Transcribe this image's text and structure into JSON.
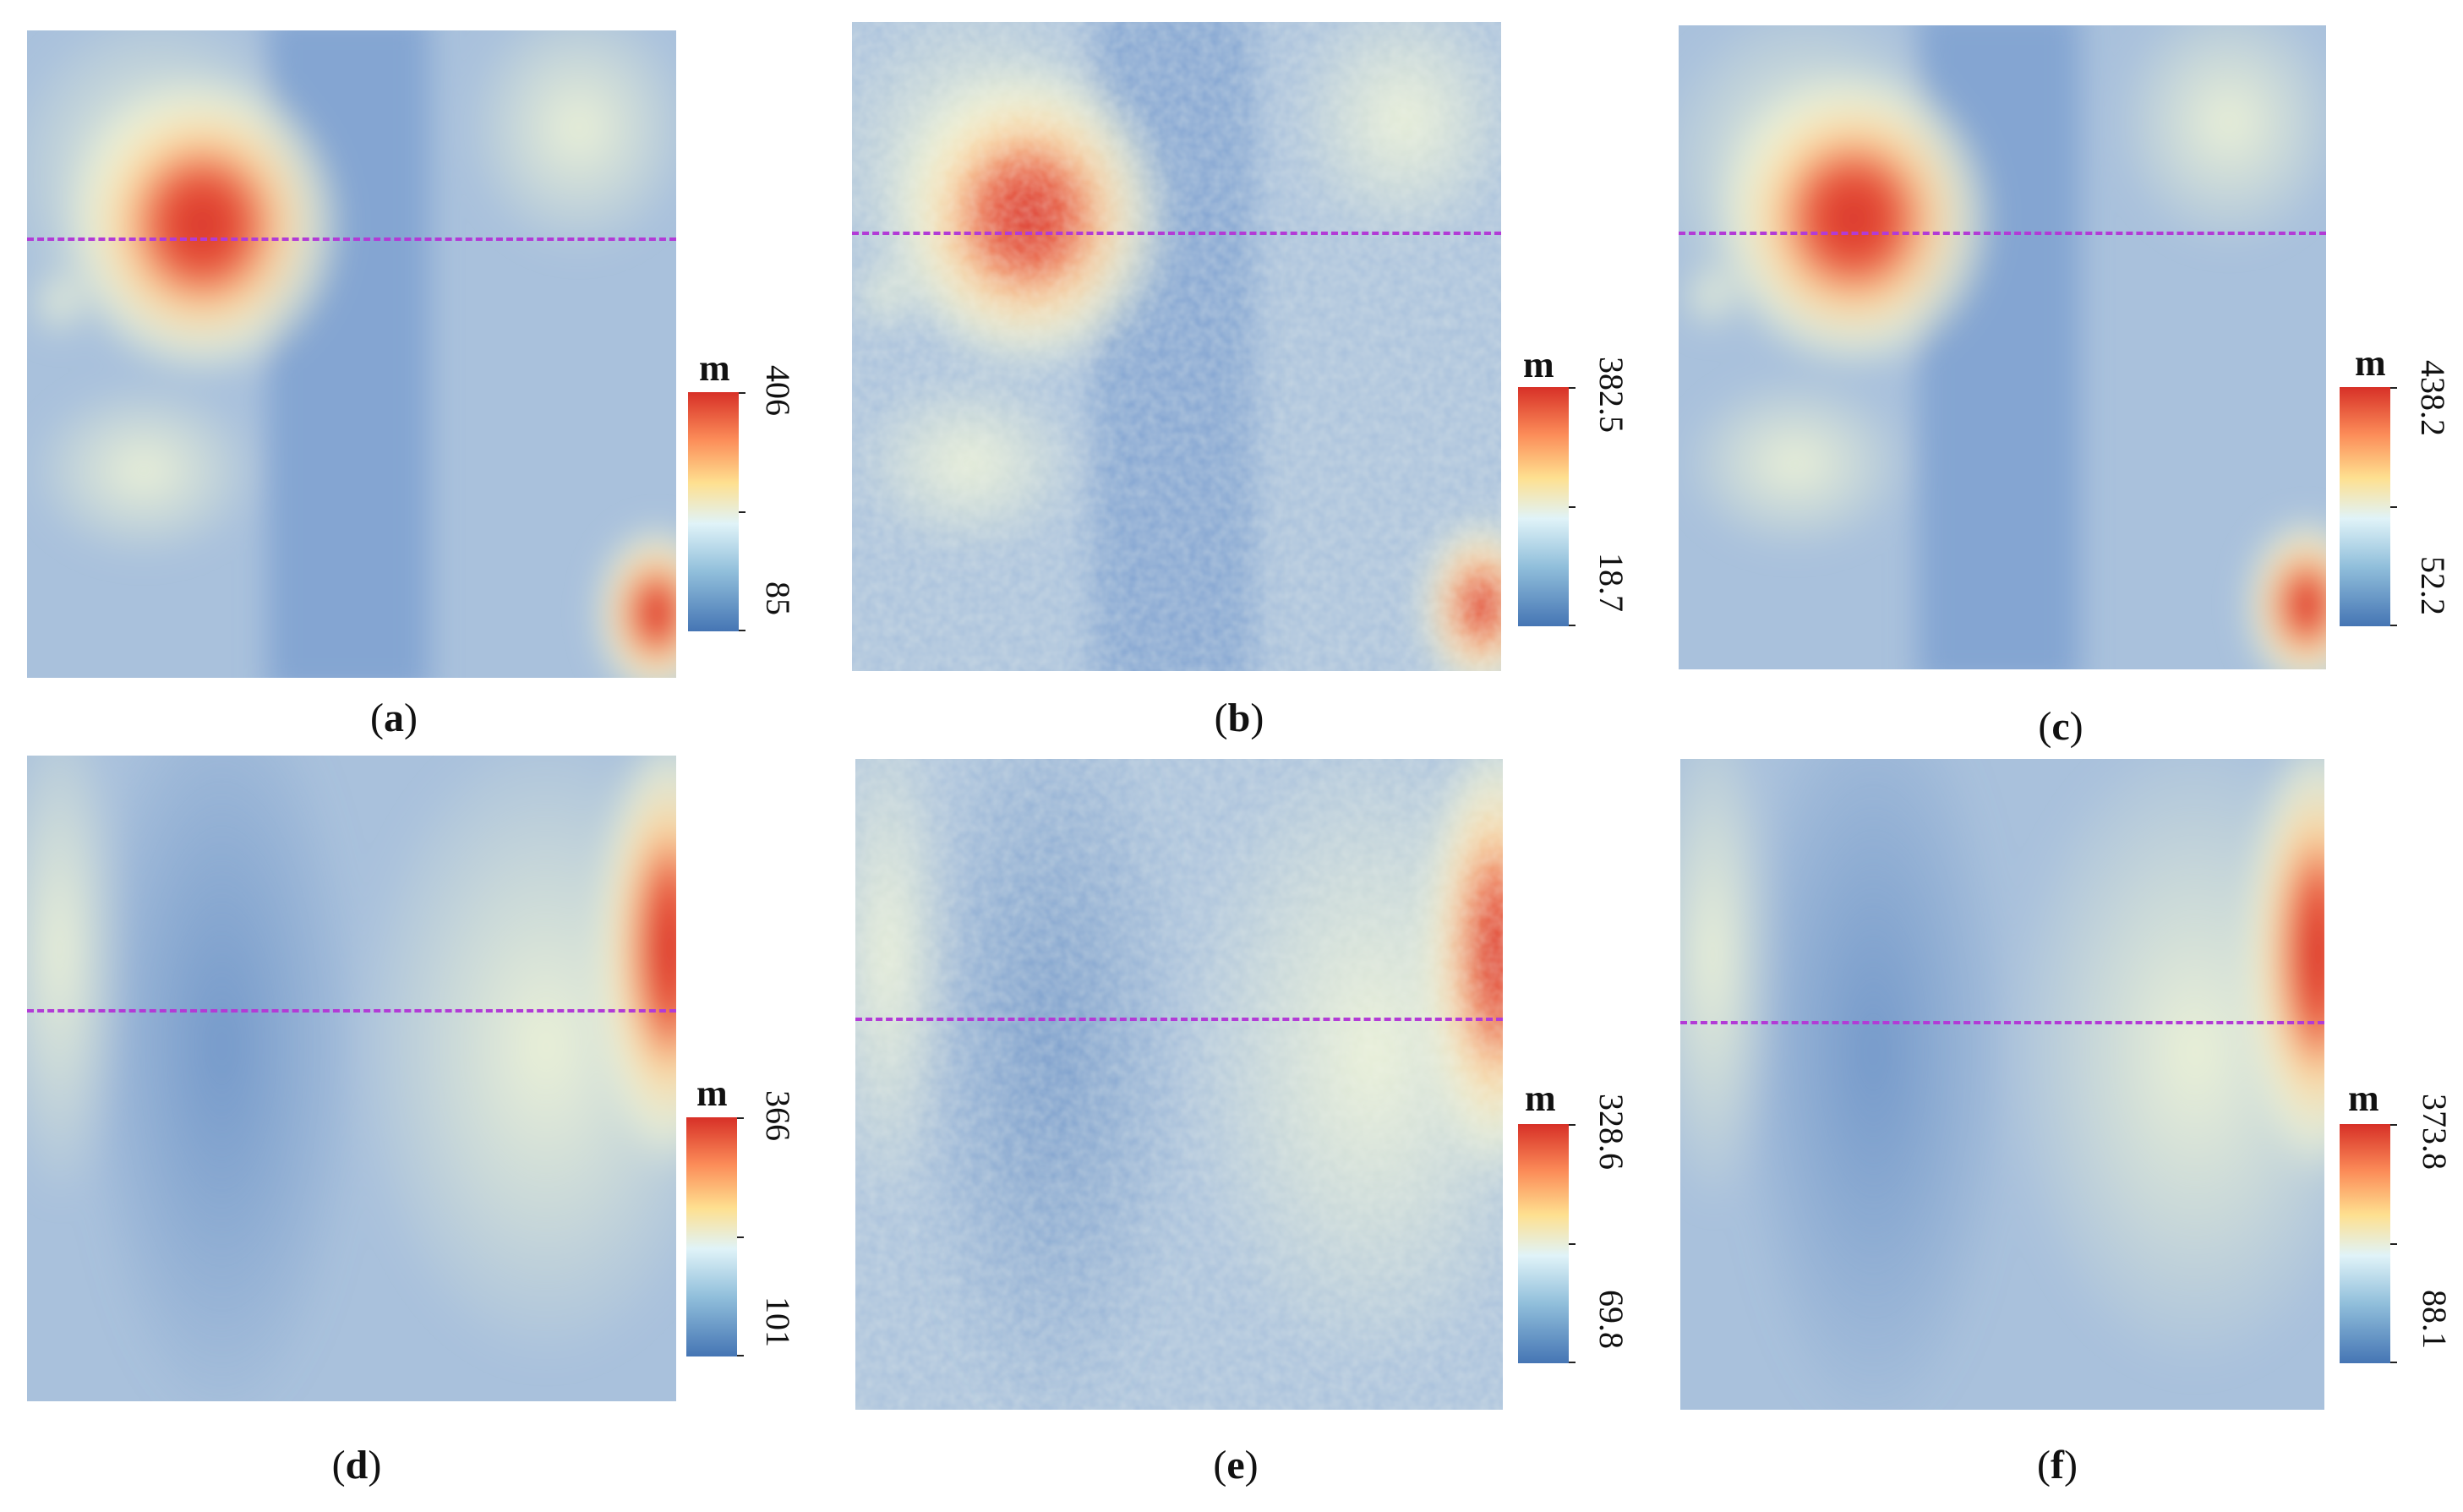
{
  "figure": {
    "panels": [
      {
        "id": "a",
        "label_open": "(",
        "label_letter": "a",
        "label_close": ")",
        "unit": "m",
        "max": "406",
        "min": "85",
        "profile_fraction": 0.32,
        "hill": "nw"
      },
      {
        "id": "b",
        "label_open": "(",
        "label_letter": "b",
        "label_close": ")",
        "unit": "m",
        "max": "382.5",
        "min": "18.7",
        "profile_fraction": 0.34,
        "hill": "nw"
      },
      {
        "id": "c",
        "label_open": "(",
        "label_letter": "c",
        "label_close": ")",
        "unit": "m",
        "max": "438.2",
        "min": "52.2",
        "profile_fraction": 0.32,
        "hill": "nw"
      },
      {
        "id": "d",
        "label_open": "(",
        "label_letter": "d",
        "label_close": ")",
        "unit": "m",
        "max": "366",
        "min": "101",
        "profile_fraction": 0.39,
        "hill": "e"
      },
      {
        "id": "e",
        "label_open": "(",
        "label_letter": "e",
        "label_close": ")",
        "unit": "m",
        "max": "328.6",
        "min": "69.8",
        "profile_fraction": 0.39,
        "hill": "e"
      },
      {
        "id": "f",
        "label_open": "(",
        "label_letter": "f",
        "label_close": ")",
        "unit": "m",
        "max": "373.8",
        "min": "88.1",
        "profile_fraction": 0.39,
        "hill": "e"
      }
    ],
    "colors": {
      "low": "#4575b4",
      "mid": "#f2f5d5",
      "high": "#d73027",
      "profile_line": "#b23bd6"
    }
  }
}
